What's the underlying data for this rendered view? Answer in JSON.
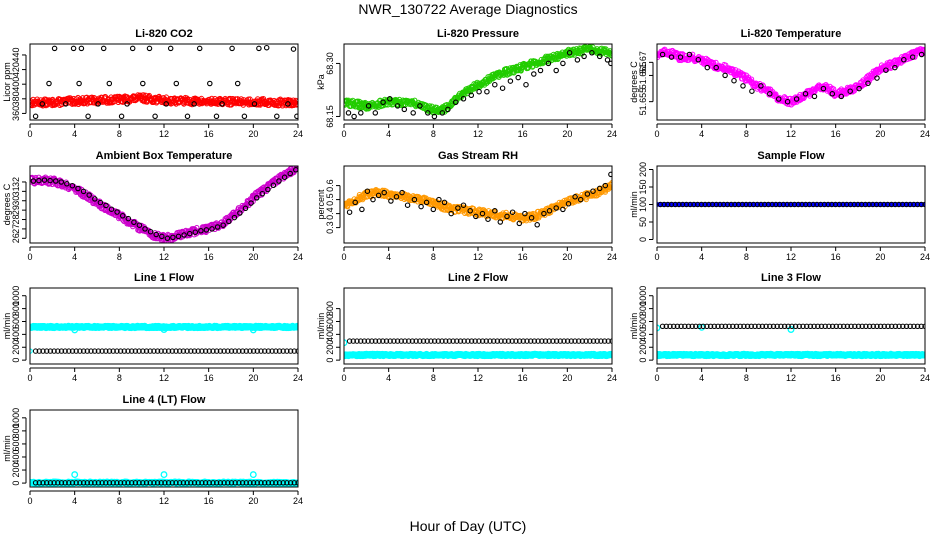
{
  "figure": {
    "title": "NWR_130722  Average Diagnostics",
    "xlabel": "Hour of Day (UTC)"
  },
  "chart_data": [
    {
      "type": "scatter",
      "title": "Li-820 CO2",
      "ylabel": "Licor ppm",
      "xlim": [
        0,
        24
      ],
      "xticks": [
        0,
        4,
        8,
        12,
        16,
        20,
        24
      ],
      "ylim": [
        351,
        455
      ],
      "yticks": [
        360,
        380,
        400,
        420,
        440
      ],
      "series": [
        {
          "color": "#ff0000",
          "style": "dense",
          "x": [
            0,
            2,
            4,
            6,
            8,
            10,
            12,
            14,
            16,
            18,
            20,
            22,
            24
          ],
          "y": [
            375,
            375,
            377,
            378,
            379,
            381,
            378,
            377,
            376,
            376,
            376,
            375,
            374
          ]
        },
        {
          "color": "#000000",
          "style": "open",
          "x": [
            0.5,
            1.1,
            1.7,
            2.2,
            3.2,
            3.9,
            4.4,
            4.6,
            5.2,
            6.1,
            6.6,
            7.1,
            8.2,
            8.7,
            9.2,
            10.1,
            10.7,
            11.2,
            12.2,
            12.6,
            13.1,
            14.1,
            14.7,
            15.2,
            16.1,
            16.7,
            17.2,
            18.1,
            18.6,
            19.2,
            20.1,
            20.5,
            21.2,
            22.1,
            23.1,
            23.6,
            23.9
          ],
          "y": [
            356,
            373,
            401,
            449,
            373,
            449,
            401,
            449,
            356,
            373,
            449,
            401,
            356,
            373,
            449,
            401,
            449,
            356,
            373,
            449,
            401,
            356,
            373,
            449,
            401,
            356,
            373,
            449,
            401,
            356,
            373,
            449,
            450,
            356,
            373,
            448,
            356
          ]
        }
      ]
    },
    {
      "type": "scatter",
      "title": "Li-820 Pressure",
      "ylabel": "kPa",
      "xlim": [
        0,
        24
      ],
      "xticks": [
        0,
        4,
        8,
        12,
        16,
        20,
        24
      ],
      "ylim": [
        68.14,
        68.355
      ],
      "yticks": [
        68.15,
        68.3
      ],
      "series": [
        {
          "color": "#22cc00",
          "style": "dense",
          "x": [
            0,
            2,
            4,
            6,
            8,
            9,
            10,
            12,
            14,
            16,
            18,
            20,
            22,
            24
          ],
          "y": [
            68.19,
            68.18,
            68.19,
            68.19,
            68.17,
            68.17,
            68.2,
            68.24,
            68.27,
            68.29,
            68.31,
            68.33,
            68.34,
            68.33
          ]
        },
        {
          "color": "#000000",
          "style": "open",
          "x": [
            0.4,
            0.9,
            1.5,
            2.2,
            2.8,
            3.5,
            4.1,
            4.8,
            5.4,
            6.2,
            6.8,
            7.5,
            8.1,
            8.8,
            9.3,
            10.0,
            10.7,
            11.4,
            12.1,
            12.8,
            13.5,
            14.2,
            14.9,
            15.6,
            16.3,
            17.0,
            17.6,
            18.3,
            19.0,
            19.6,
            20.2,
            20.9,
            21.5,
            22.2,
            22.9,
            23.6,
            23.9
          ],
          "y": [
            68.16,
            68.15,
            68.16,
            68.18,
            68.16,
            68.19,
            68.2,
            68.18,
            68.17,
            68.16,
            68.18,
            68.16,
            68.15,
            68.16,
            68.17,
            68.19,
            68.2,
            68.21,
            68.22,
            68.22,
            68.24,
            68.23,
            68.25,
            68.26,
            68.24,
            68.27,
            68.28,
            68.3,
            68.28,
            68.3,
            68.33,
            68.31,
            68.32,
            68.33,
            68.32,
            68.31,
            68.3
          ]
        }
      ]
    },
    {
      "type": "scatter",
      "title": "Li-820 Temperature",
      "ylabel": "degrees C",
      "xlim": [
        0,
        24
      ],
      "xticks": [
        0,
        4,
        8,
        12,
        16,
        20,
        24
      ],
      "ylim": [
        51.648,
        51.677
      ],
      "yticks": [
        51.655,
        51.665,
        51.67
      ],
      "series": [
        {
          "color": "#ff00ff",
          "style": "dense",
          "x": [
            0,
            1,
            2,
            3,
            4,
            5,
            6,
            7,
            8,
            9,
            10,
            11,
            12,
            13,
            14,
            15,
            16,
            17,
            18,
            19,
            20,
            21,
            22,
            23,
            24
          ],
          "y": [
            51.673,
            51.674,
            51.672,
            51.672,
            51.671,
            51.669,
            51.668,
            51.666,
            51.664,
            51.661,
            51.659,
            51.656,
            51.655,
            51.657,
            51.659,
            51.661,
            51.658,
            51.659,
            51.661,
            51.664,
            51.668,
            51.669,
            51.671,
            51.673,
            51.675
          ]
        },
        {
          "color": "#000000",
          "style": "open",
          "x": [
            0.5,
            1.3,
            2.1,
            2.9,
            3.7,
            4.5,
            5.3,
            6.1,
            6.9,
            7.7,
            8.5,
            9.3,
            10.1,
            10.9,
            11.7,
            12.5,
            13.3,
            14.1,
            14.9,
            15.7,
            16.5,
            17.3,
            18.1,
            18.9,
            19.7,
            20.5,
            21.3,
            22.1,
            22.9,
            23.7
          ],
          "y": [
            51.673,
            51.672,
            51.672,
            51.673,
            51.671,
            51.668,
            51.668,
            51.665,
            51.663,
            51.661,
            51.659,
            51.661,
            51.658,
            51.656,
            51.655,
            51.656,
            51.658,
            51.657,
            51.66,
            51.658,
            51.657,
            51.659,
            51.66,
            51.662,
            51.664,
            51.667,
            51.668,
            51.671,
            51.672,
            51.673
          ]
        }
      ]
    },
    {
      "type": "scatter",
      "title": "Ambient Box Temperature",
      "ylabel": "degrees C",
      "xlim": [
        0,
        24
      ],
      "xticks": [
        0,
        4,
        8,
        12,
        16,
        20,
        24
      ],
      "ylim": [
        25.5,
        33.7
      ],
      "yticks": [
        26,
        27,
        28,
        29,
        30,
        31,
        32
      ],
      "series": [
        {
          "color": "#cc00cc",
          "style": "dense",
          "x": [
            0,
            1,
            2,
            3,
            4,
            5,
            6,
            7,
            8,
            9,
            10,
            11,
            12,
            13,
            14,
            15,
            16,
            17,
            18,
            19,
            20,
            21,
            22,
            23,
            24
          ],
          "y": [
            32.1,
            32.2,
            32.1,
            31.8,
            31.3,
            30.6,
            29.8,
            29.1,
            28.4,
            27.7,
            27.0,
            26.4,
            26.0,
            26.2,
            26.5,
            26.8,
            27.0,
            27.4,
            28.2,
            29.2,
            30.3,
            31.2,
            32.1,
            32.9,
            33.5
          ]
        },
        {
          "color": "#000000",
          "style": "open",
          "x": [
            0.3,
            0.8,
            1.3,
            1.8,
            2.3,
            2.8,
            3.3,
            3.8,
            4.3,
            4.8,
            5.3,
            5.8,
            6.3,
            6.8,
            7.3,
            7.8,
            8.3,
            8.8,
            9.3,
            9.8,
            10.3,
            10.8,
            11.3,
            11.8,
            12.3,
            12.8,
            13.3,
            13.8,
            14.3,
            14.8,
            15.3,
            15.8,
            16.3,
            16.8,
            17.3,
            17.8,
            18.3,
            18.8,
            19.3,
            19.8,
            20.3,
            20.8,
            21.3,
            21.8,
            22.3,
            22.8,
            23.3,
            23.8
          ],
          "y": [
            32.1,
            32.15,
            32.2,
            32.15,
            32.1,
            32.0,
            31.8,
            31.6,
            31.3,
            31.0,
            30.6,
            30.2,
            29.8,
            29.5,
            29.1,
            28.8,
            28.4,
            28.1,
            27.7,
            27.4,
            27.0,
            26.7,
            26.4,
            26.2,
            26.0,
            26.1,
            26.2,
            26.35,
            26.5,
            26.65,
            26.8,
            26.9,
            27.0,
            27.2,
            27.4,
            27.8,
            28.2,
            28.7,
            29.2,
            29.75,
            30.3,
            30.75,
            31.2,
            31.65,
            32.1,
            32.5,
            32.9,
            33.3
          ]
        }
      ]
    },
    {
      "type": "scatter",
      "title": "Gas Stream RH",
      "ylabel": "percent",
      "xlim": [
        0,
        24
      ],
      "xticks": [
        0,
        4,
        8,
        12,
        16,
        20,
        24
      ],
      "ylim": [
        0.19,
        0.74
      ],
      "yticks": [
        0.3,
        0.4,
        0.5,
        0.6
      ],
      "series": [
        {
          "color": "#ff9900",
          "style": "dense",
          "x": [
            0,
            1,
            2,
            3,
            4,
            5,
            6,
            7,
            8,
            9,
            10,
            11,
            12,
            13,
            14,
            15,
            16,
            17,
            18,
            19,
            20,
            21,
            22,
            23,
            24
          ],
          "y": [
            0.46,
            0.5,
            0.53,
            0.55,
            0.54,
            0.53,
            0.51,
            0.5,
            0.47,
            0.45,
            0.43,
            0.42,
            0.41,
            0.4,
            0.39,
            0.38,
            0.37,
            0.38,
            0.41,
            0.45,
            0.48,
            0.51,
            0.53,
            0.56,
            0.6
          ]
        },
        {
          "color": "#000000",
          "style": "open",
          "x": [
            0.5,
            1.0,
            1.6,
            2.1,
            2.6,
            3.1,
            3.6,
            4.2,
            4.7,
            5.2,
            5.7,
            6.3,
            6.9,
            7.4,
            8.0,
            8.5,
            9.0,
            9.6,
            10.2,
            10.7,
            11.3,
            11.8,
            12.4,
            12.9,
            13.5,
            14.0,
            14.6,
            15.1,
            15.7,
            16.2,
            16.8,
            17.3,
            17.9,
            18.4,
            19.0,
            19.6,
            20.1,
            20.7,
            21.2,
            21.8,
            22.3,
            22.9,
            23.4,
            23.9
          ],
          "y": [
            0.41,
            0.48,
            0.43,
            0.56,
            0.5,
            0.53,
            0.55,
            0.49,
            0.52,
            0.55,
            0.46,
            0.5,
            0.45,
            0.48,
            0.43,
            0.5,
            0.48,
            0.4,
            0.44,
            0.46,
            0.42,
            0.38,
            0.4,
            0.36,
            0.42,
            0.34,
            0.38,
            0.41,
            0.33,
            0.4,
            0.37,
            0.32,
            0.4,
            0.42,
            0.44,
            0.43,
            0.47,
            0.52,
            0.5,
            0.54,
            0.56,
            0.58,
            0.6,
            0.68
          ]
        }
      ]
    },
    {
      "type": "scatter",
      "title": "Sample Flow",
      "ylabel": "ml/min",
      "xlim": [
        0,
        24
      ],
      "xticks": [
        0,
        4,
        8,
        12,
        16,
        20,
        24
      ],
      "ylim": [
        -10,
        210
      ],
      "yticks": [
        0,
        50,
        100,
        150,
        200
      ],
      "series": [
        {
          "color": "#0000ff",
          "style": "line",
          "x": [
            0,
            24
          ],
          "y": [
            100,
            100
          ]
        },
        {
          "color": "#000000",
          "style": "open-dense",
          "x": [
            0.3,
            24
          ],
          "y": [
            100,
            100
          ]
        }
      ]
    },
    {
      "type": "scatter",
      "title": "Line 1 Flow",
      "ylabel": "ml/min",
      "xlim": [
        0,
        24
      ],
      "xticks": [
        0,
        4,
        8,
        12,
        16,
        20,
        24
      ],
      "ylim": [
        -60,
        1120
      ],
      "yticks": [
        0,
        200,
        400,
        600,
        800,
        1000
      ],
      "series": [
        {
          "color": "#00ffff",
          "style": "band",
          "x": [
            0,
            24
          ],
          "y": [
            515,
            515
          ],
          "x_outliers": [
            4,
            12,
            20
          ],
          "y_outliers": [
            470,
            475,
            470
          ]
        },
        {
          "color": "#00ffff",
          "style": "open",
          "x": [
            0
          ],
          "y": [
            140
          ]
        },
        {
          "color": "#000000",
          "style": "open-dense",
          "x": [
            0.5,
            24
          ],
          "y": [
            140,
            140
          ]
        }
      ]
    },
    {
      "type": "scatter",
      "title": "Line 2 Flow",
      "ylabel": "ml/min",
      "xlim": [
        0,
        24
      ],
      "xticks": [
        0,
        4,
        8,
        12,
        16,
        20,
        24
      ],
      "ylim": [
        -60,
        1120
      ],
      "yticks": [
        0,
        200,
        400,
        600,
        800
      ],
      "series": [
        {
          "color": "#00ffff",
          "style": "band",
          "x": [
            0,
            24
          ],
          "y": [
            80,
            80
          ],
          "x_outliers": [
            0
          ],
          "y_outliers": [
            270
          ]
        },
        {
          "color": "#000000",
          "style": "open-dense",
          "x": [
            0.5,
            24
          ],
          "y": [
            295,
            295
          ]
        }
      ]
    },
    {
      "type": "scatter",
      "title": "Line 3 Flow",
      "ylabel": "ml/min",
      "xlim": [
        0,
        24
      ],
      "xticks": [
        0,
        4,
        8,
        12,
        16,
        20,
        24
      ],
      "ylim": [
        -60,
        1120
      ],
      "yticks": [
        0,
        200,
        400,
        600,
        800,
        1000
      ],
      "series": [
        {
          "color": "#00ffff",
          "style": "band",
          "x": [
            0,
            24
          ],
          "y": [
            80,
            80
          ],
          "x_outliers": [
            0,
            4,
            12
          ],
          "y_outliers": [
            500,
            510,
            475
          ]
        },
        {
          "color": "#000000",
          "style": "open-dense",
          "x": [
            0.5,
            24
          ],
          "y": [
            525,
            525
          ]
        }
      ]
    },
    {
      "type": "scatter",
      "title": "Line 4 (LT) Flow",
      "ylabel": "ml/min",
      "xlim": [
        0,
        24
      ],
      "xticks": [
        0,
        4,
        8,
        12,
        16,
        20,
        24
      ],
      "ylim": [
        -60,
        1120
      ],
      "yticks": [
        0,
        200,
        400,
        600,
        800,
        1000
      ],
      "series": [
        {
          "color": "#00ffff",
          "style": "band",
          "x": [
            0,
            24
          ],
          "y": [
            5,
            5
          ],
          "x_outliers": [
            4,
            12,
            20
          ],
          "y_outliers": [
            130,
            130,
            130
          ]
        },
        {
          "color": "#000000",
          "style": "open-dense",
          "x": [
            0.5,
            24
          ],
          "y": [
            5,
            5
          ]
        }
      ]
    }
  ]
}
